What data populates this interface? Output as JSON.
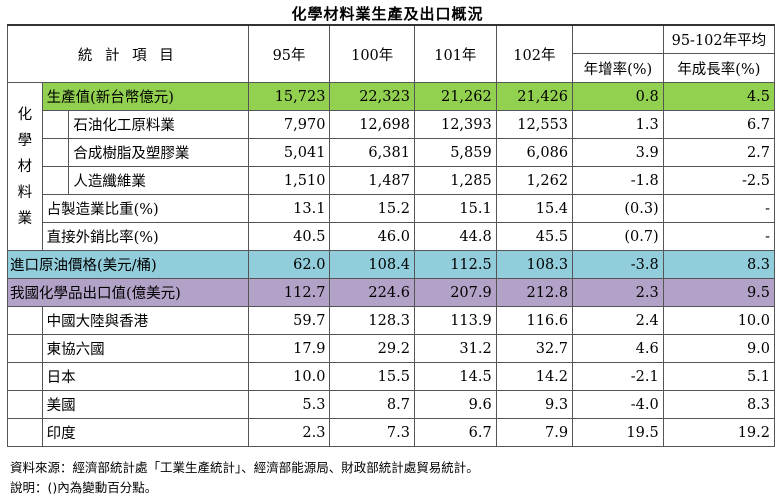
{
  "title": "化學材料業生產及出口概況",
  "header": {
    "item": "統 計 項 目",
    "y95": "95年",
    "y100": "100年",
    "y101": "101年",
    "y102": "102年",
    "yoy": "年增率(%)",
    "avg_line1": "95-102年平均",
    "avg_line2": "年成長率(%)"
  },
  "group_label": [
    "化",
    "學",
    "材",
    "料",
    "業"
  ],
  "rows": {
    "production": [
      "生產值(新台幣億元)",
      "15,723",
      "22,323",
      "21,262",
      "21,426",
      "0.8",
      "4.5"
    ],
    "petro": [
      "石油化工原料業",
      "7,970",
      "12,698",
      "12,393",
      "12,553",
      "1.3",
      "6.7"
    ],
    "resin": [
      "合成樹脂及塑膠業",
      "5,041",
      "6,381",
      "5,859",
      "6,086",
      "3.9",
      "2.7"
    ],
    "fiber": [
      "人造纖維業",
      "1,510",
      "1,487",
      "1,285",
      "1,262",
      "-1.8",
      "-2.5"
    ],
    "share": [
      "占製造業比重(%)",
      "13.1",
      "15.2",
      "15.1",
      "15.4",
      "(0.3)",
      "-"
    ],
    "export_ratio": [
      "直接外銷比率(%)",
      "40.5",
      "46.0",
      "44.8",
      "45.5",
      "(0.7)",
      "-"
    ],
    "oil": [
      "進口原油價格(美元/桶)",
      "62.0",
      "108.4",
      "112.5",
      "108.3",
      "-3.8",
      "8.3"
    ],
    "chem_export": [
      "我國化學品出口值(億美元)",
      "112.7",
      "224.6",
      "207.9",
      "212.8",
      "2.3",
      "9.5"
    ],
    "china": [
      "中國大陸與香港",
      "59.7",
      "128.3",
      "113.9",
      "116.6",
      "2.4",
      "10.0"
    ],
    "asean": [
      "東協六國",
      "17.9",
      "29.2",
      "31.2",
      "32.7",
      "4.6",
      "9.0"
    ],
    "japan": [
      "日本",
      "10.0",
      "15.5",
      "14.5",
      "14.2",
      "-2.1",
      "5.1"
    ],
    "usa": [
      "美國",
      "5.3",
      "8.7",
      "9.6",
      "9.3",
      "-4.0",
      "8.3"
    ],
    "india": [
      "印度",
      "2.3",
      "7.3",
      "6.7",
      "7.9",
      "19.5",
      "19.2"
    ]
  },
  "notes": {
    "source": "資料來源：經濟部統計處「工業生產統計」、經濟部能源局、財政部統計處貿易統計。",
    "remark": "說明：()內為變動百分點。"
  }
}
